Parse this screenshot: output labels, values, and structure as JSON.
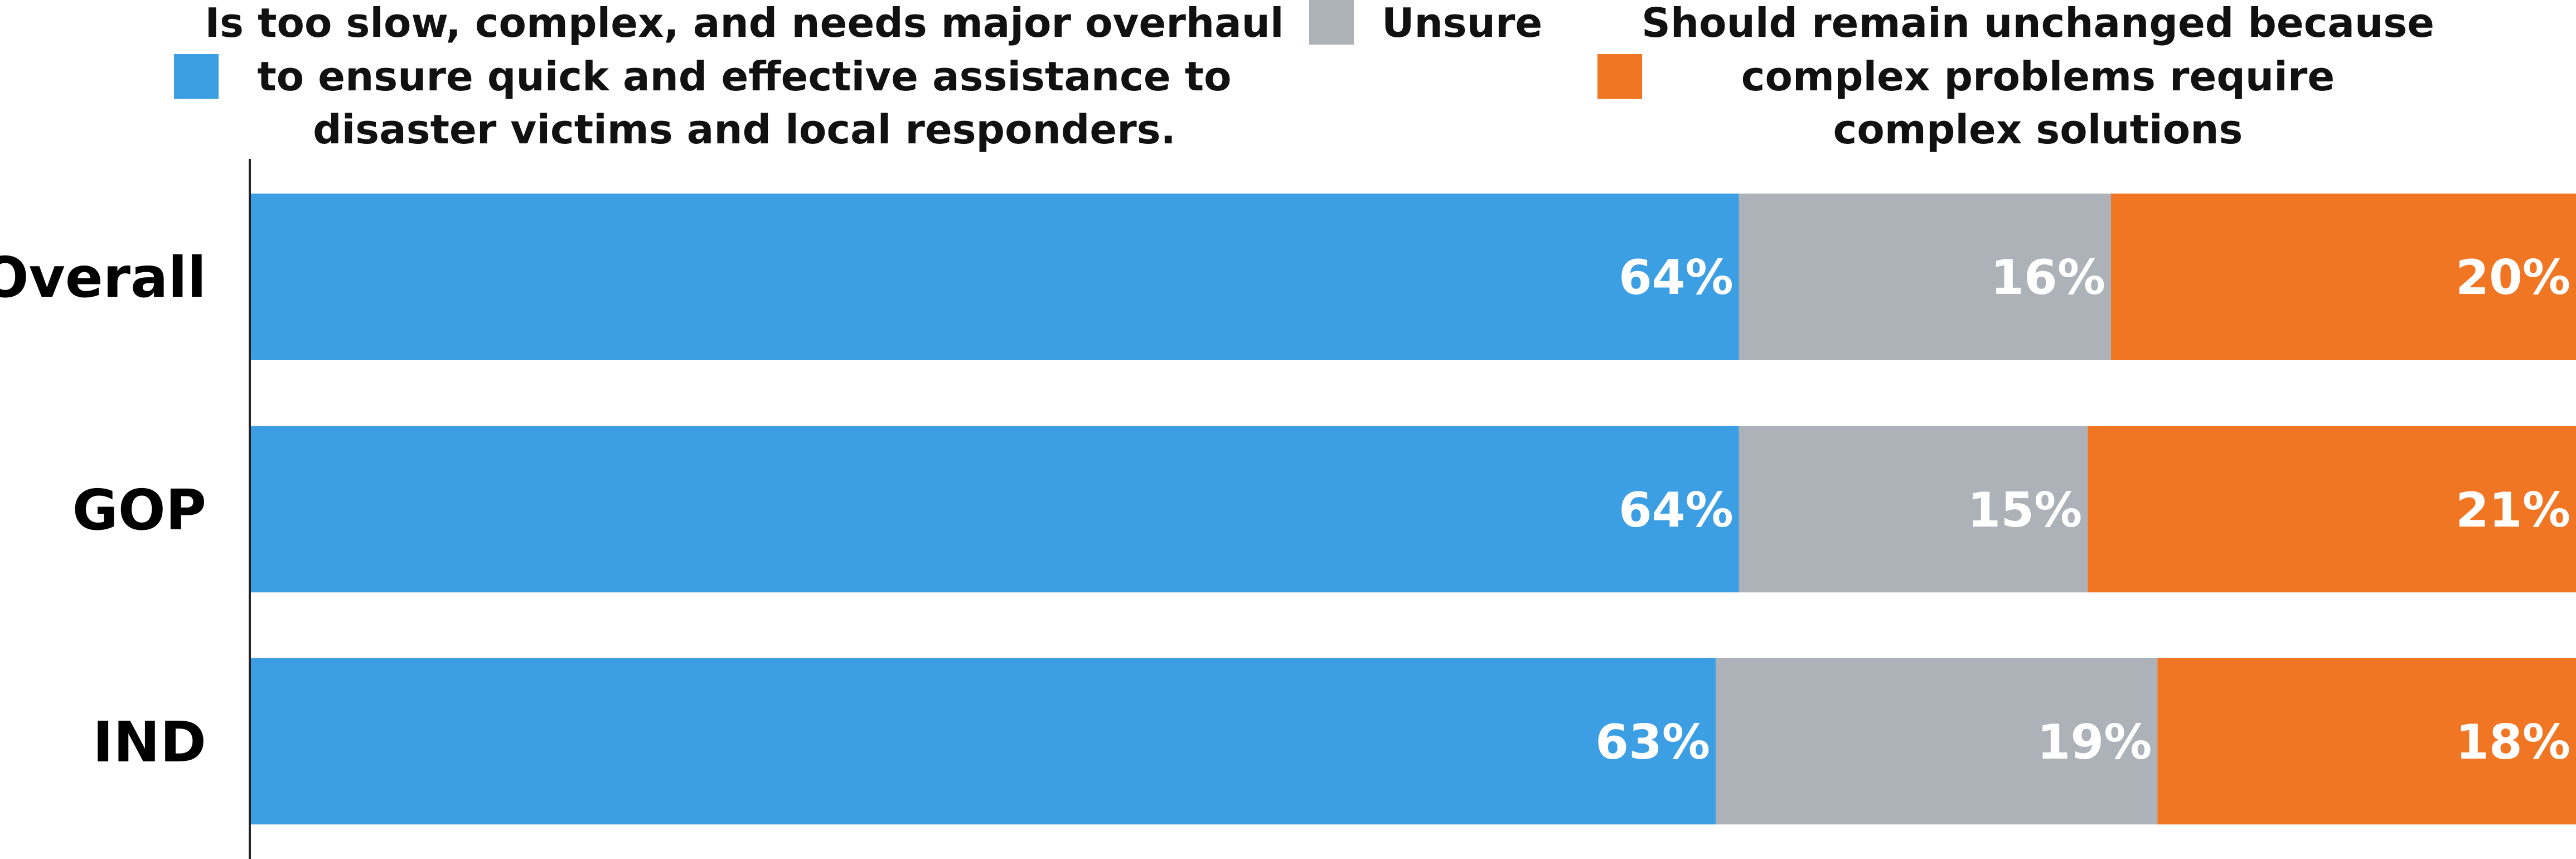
{
  "chart_data": {
    "type": "bar",
    "orientation": "horizontal",
    "stacked": true,
    "categories": [
      "Overall",
      "GOP",
      "IND"
    ],
    "series": [
      {
        "name": "Is too slow, complex, and needs major overhaul to ensure quick and effective assistance to disaster victims and local responders.",
        "name_lines": [
          "Is too slow, complex, and needs major overhaul",
          "to ensure quick and effective assistance to",
          "disaster victims and local responders."
        ],
        "color": "#3d9fe3",
        "values": [
          64,
          64,
          63
        ],
        "value_labels": [
          "64%",
          "64%",
          "63%"
        ]
      },
      {
        "name": "Unsure",
        "name_lines": [
          "Unsure"
        ],
        "color": "#adb1b8",
        "values": [
          16,
          15,
          19
        ],
        "value_labels": [
          "16%",
          "15%",
          "19%"
        ]
      },
      {
        "name": "Should remain unchanged because complex problems require complex solutions",
        "name_lines": [
          "Should remain unchanged because",
          "complex problems require",
          "complex solutions"
        ],
        "color": "#f07623",
        "values": [
          20,
          21,
          18
        ],
        "value_labels": [
          "20%",
          "21%",
          "18%"
        ]
      }
    ],
    "xlim": [
      0,
      100
    ],
    "grid": false,
    "legend": "top"
  }
}
